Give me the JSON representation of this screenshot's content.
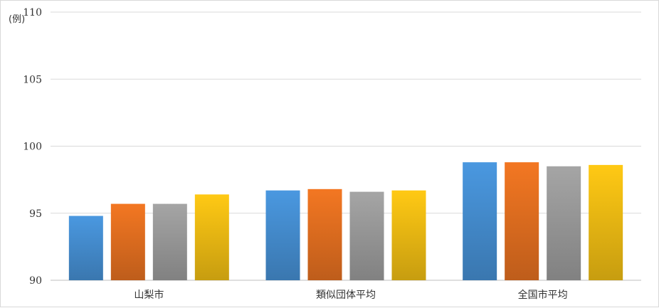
{
  "chart_data": {
    "type": "bar",
    "y_unit": "(例)",
    "categories": [
      "山梨市",
      "類似団体平均",
      "全国市平均"
    ],
    "series": [
      {
        "color": "#4a98e0",
        "values": [
          94.8,
          96.7,
          98.8
        ]
      },
      {
        "color": "#f37722",
        "values": [
          95.7,
          96.8,
          98.8
        ]
      },
      {
        "color": "#a5a5a5",
        "values": [
          95.7,
          96.6,
          98.5
        ]
      },
      {
        "color": "#ffc914",
        "values": [
          96.4,
          96.7,
          98.6
        ]
      }
    ],
    "ylim": [
      90,
      110
    ],
    "yticks": [
      90,
      95,
      100,
      105,
      110
    ],
    "grid": true
  }
}
